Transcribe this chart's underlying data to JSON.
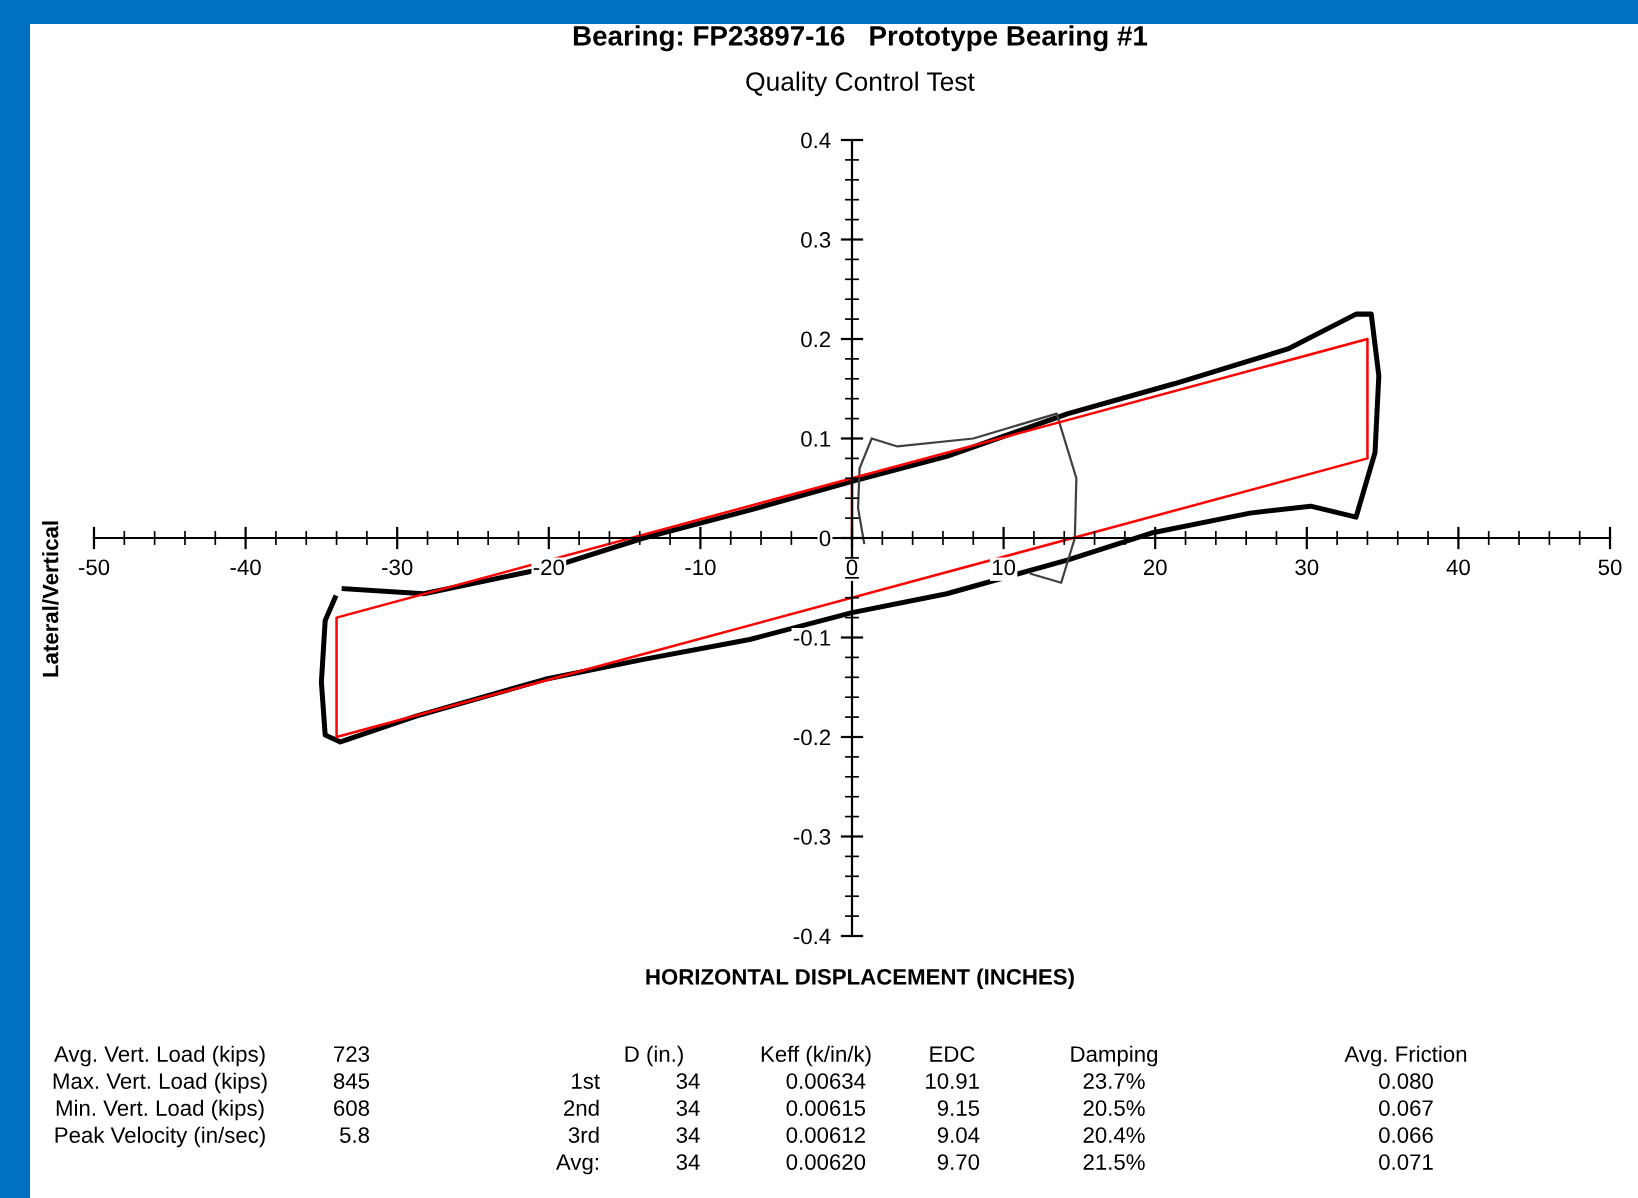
{
  "chart_data": {
    "type": "line",
    "title": "Bearing: FP23897-16   Prototype Bearing #1",
    "subtitle": "Quality Control Test",
    "xlabel": "HORIZONTAL DISPLACEMENT (INCHES)",
    "ylabel": "Lateral/Vertical",
    "xlim": [
      -50,
      50
    ],
    "xticks": [
      -50,
      -40,
      -30,
      -20,
      -10,
      0,
      10,
      20,
      30,
      40,
      50
    ],
    "ylim": [
      -0.4,
      0.4
    ],
    "yticks": [
      -0.4,
      -0.3,
      -0.2,
      -0.1,
      0,
      0.1,
      0.2,
      0.3,
      0.4
    ],
    "grid": false,
    "marker": "none",
    "line_style": "solid",
    "series": [
      {
        "color": "#000000",
        "x": [
          -33.5,
          -28.25,
          -19.75,
          -13.75,
          -6.75,
          0,
          6.25,
          14.25,
          21.25,
          28.75,
          33.25,
          34.25,
          34.75,
          34.5,
          33.25,
          30.25,
          26.25,
          19.75,
          14.25,
          6.25,
          0,
          -6.75,
          -13.75,
          -20.25,
          -28.75,
          -33.75,
          -34.75,
          -35,
          -34.75,
          -34.1
        ],
        "values": [
          -0.051,
          -0.056,
          -0.029,
          0,
          0.028,
          0.057,
          0.082,
          0.125,
          0.155,
          0.19,
          0.225,
          0.225,
          0.163,
          0.086,
          0.021,
          0.032,
          0.025,
          0.005,
          -0.022,
          -0.056,
          -0.075,
          -0.102,
          -0.122,
          -0.142,
          -0.179,
          -0.205,
          -0.198,
          -0.145,
          -0.083,
          -0.06
        ]
      },
      {
        "color": "#404040",
        "x": [
          0.8,
          0.4,
          0.5,
          1.3,
          3,
          8,
          13.5,
          14.8,
          14.7,
          13.8,
          11.8
        ],
        "values": [
          -0.005,
          0.03,
          0.07,
          0.1,
          0.092,
          0.1,
          0.125,
          0.06,
          0,
          -0.045,
          -0.036
        ]
      },
      {
        "color": "#ff0000",
        "x": [
          0,
          0,
          34,
          34,
          -34,
          -34,
          0
        ],
        "values": [
          0,
          0.06,
          0.2,
          0.08,
          -0.2,
          -0.08,
          0.06
        ]
      }
    ],
    "annotations": [
      "Avg. Vert. Load (kips)",
      "723",
      "Max. Vert. Load (kips)",
      "845",
      "Min. Vert. Load (kips)",
      "608",
      "Peak Velocity (in/sec)",
      "5.8",
      "D (in.)",
      "Keff (k/in/k)",
      "EDC",
      "Damping",
      "Avg. Friction",
      "1st",
      "34",
      "0.00634",
      "10.91",
      "23.7%",
      "0.080",
      "2nd",
      "34",
      "0.00615",
      "9.15",
      "20.5%",
      "0.067",
      "3rd",
      "34",
      "0.00612",
      "9.04",
      "20.4%",
      "0.066",
      "Avg:",
      "34",
      "0.00620",
      "9.70",
      "21.5%",
      "0.071"
    ]
  }
}
